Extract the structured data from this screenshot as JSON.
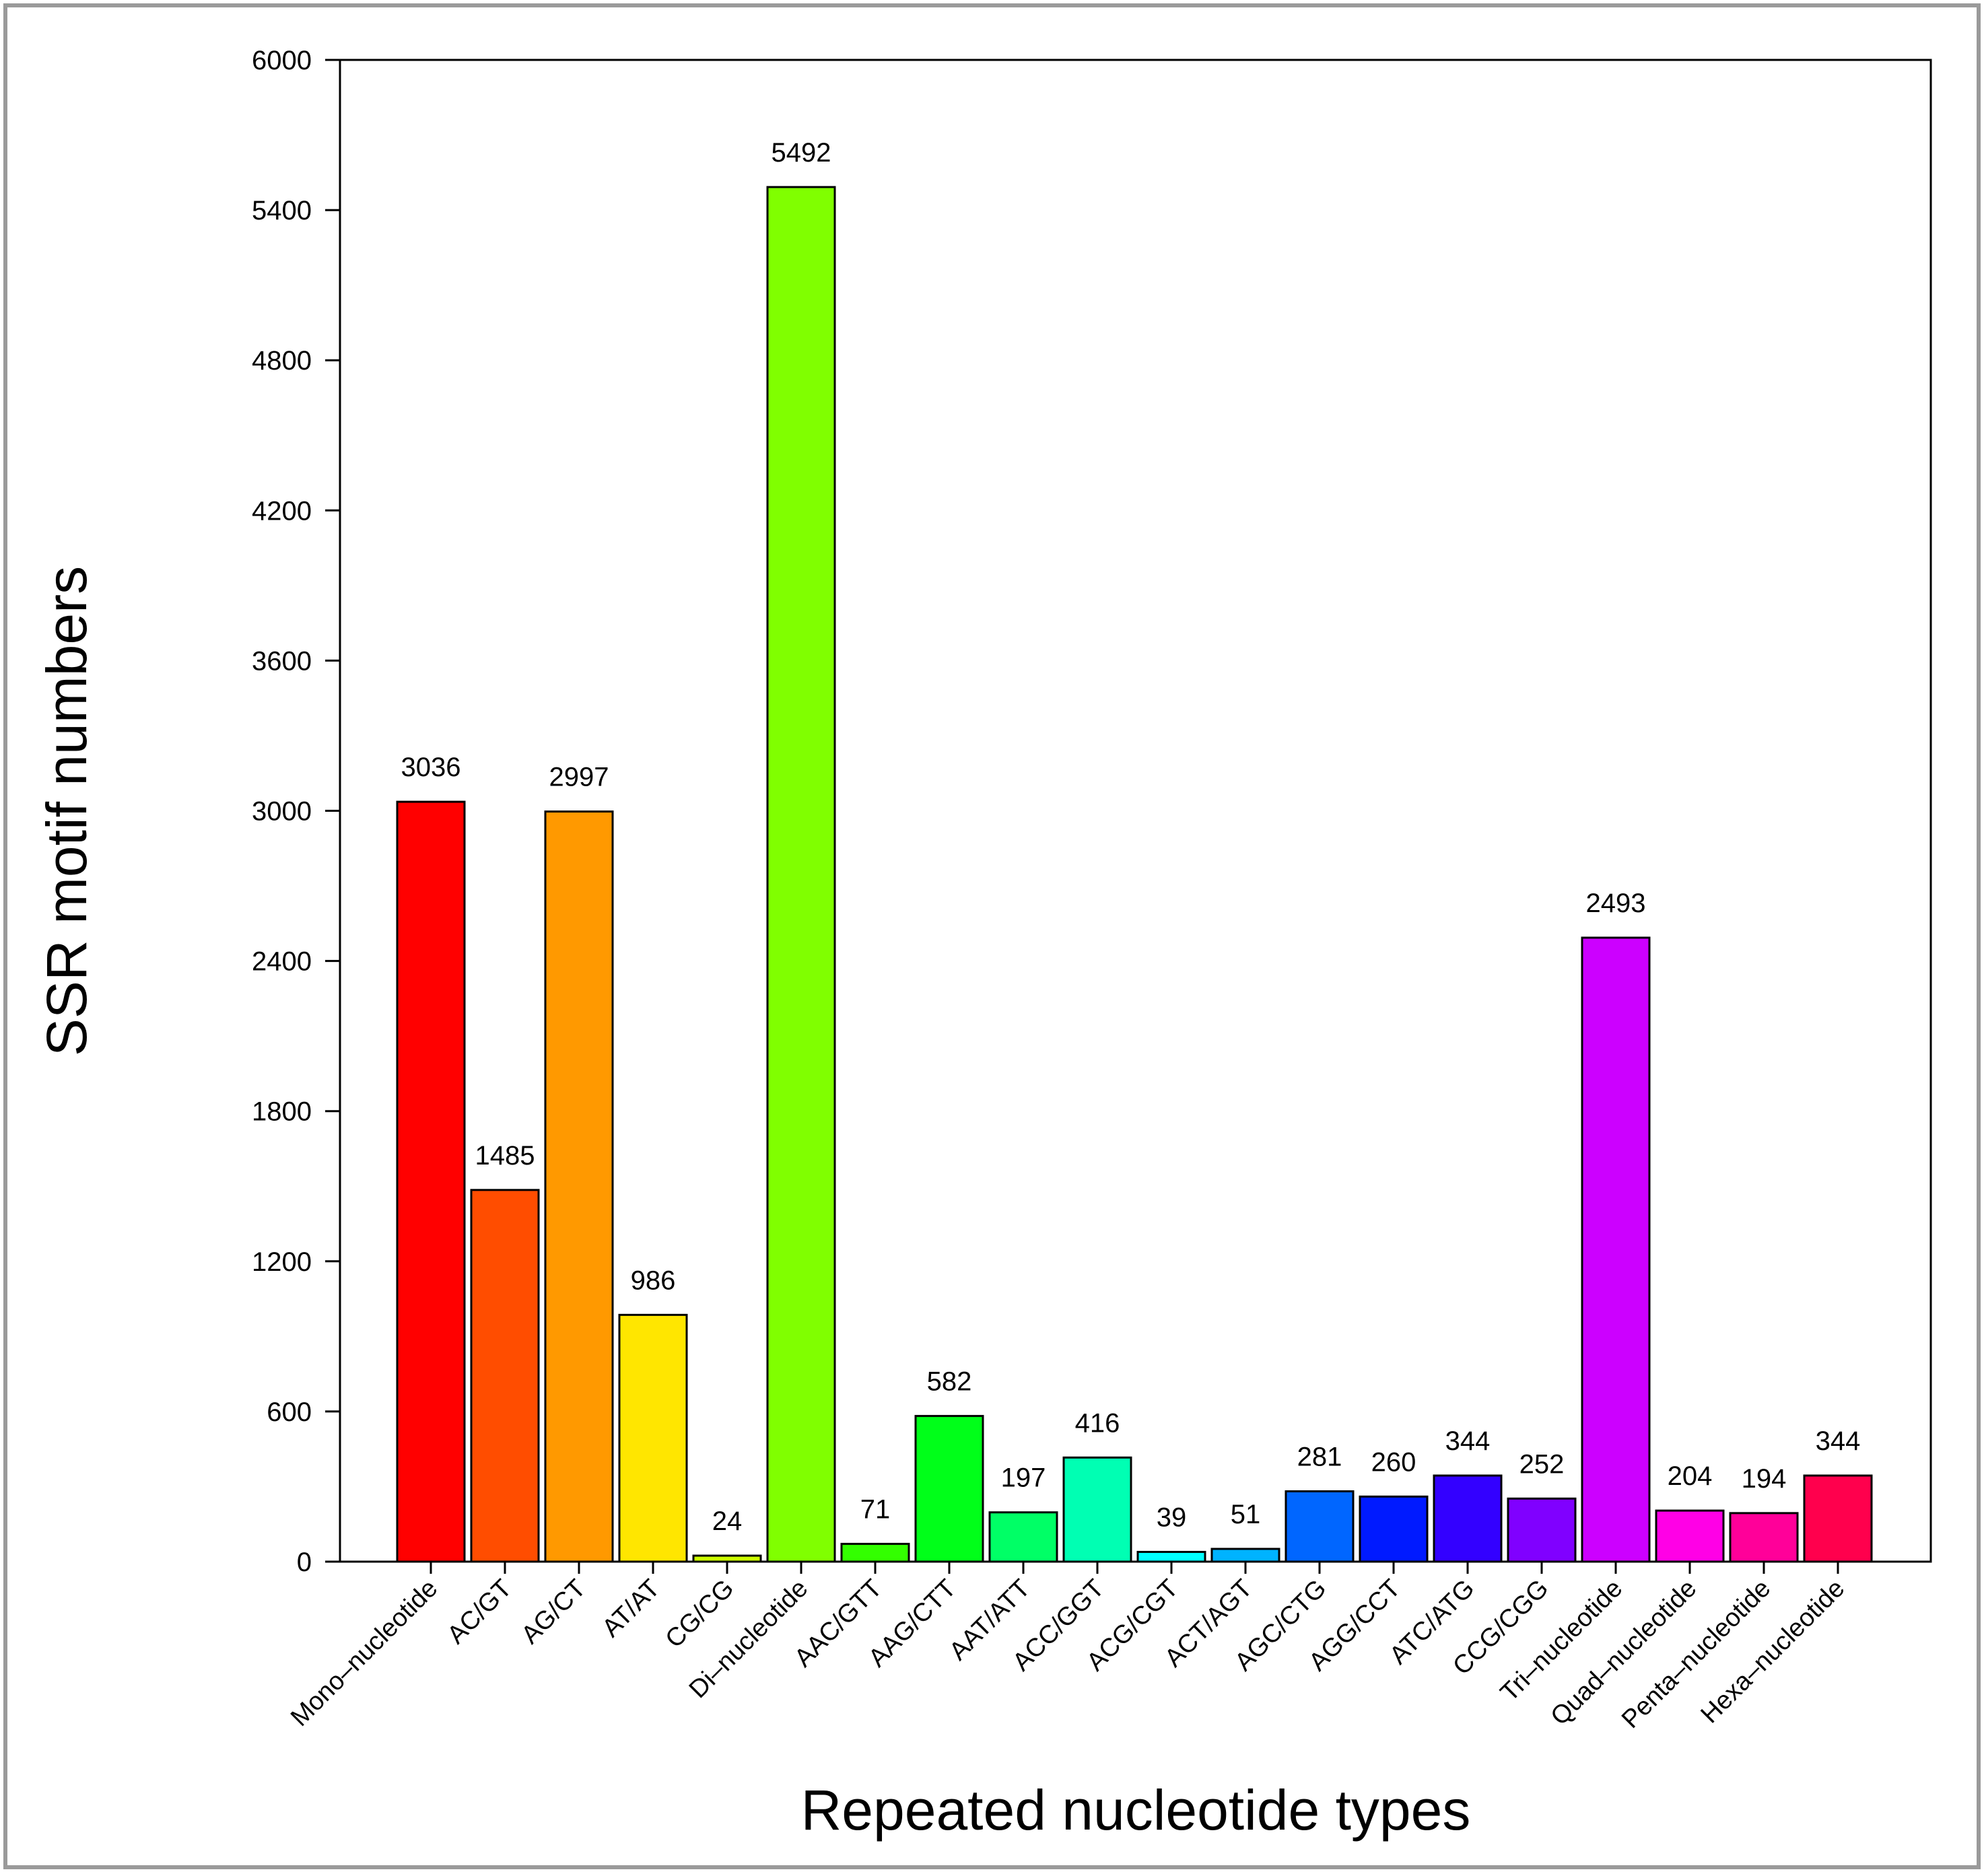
{
  "chart_data": {
    "type": "bar",
    "title": "",
    "xlabel": "Repeated nucleotide types",
    "ylabel": "SSR motif numbers",
    "ylim": [
      0,
      6000
    ],
    "yticks": [
      "0",
      "600",
      "1200",
      "1800",
      "2400",
      "3000",
      "3600",
      "4200",
      "4800",
      "5400",
      "6000"
    ],
    "ytick_values": [
      0,
      600,
      1200,
      1800,
      2400,
      3000,
      3600,
      4200,
      4800,
      5400,
      6000
    ],
    "grid": false,
    "legend": "none",
    "categories": [
      "Mono–nucleotide",
      "AC/GT",
      "AG/CT",
      "AT/AT",
      "CG/CG",
      "Di–nucleotide",
      "AAC/GTT",
      "AAG/CTT",
      "AAT/ATT",
      "ACC/GGT",
      "ACG/CGT",
      "ACT/AGT",
      "AGC/CTG",
      "AGG/CCT",
      "ATC/ATG",
      "CCG/CGG",
      "Tri–nucleotide",
      "Quad–nucleotide",
      "Penta–nucleotide",
      "Hexa–nucleotide"
    ],
    "values": [
      3036,
      1485,
      2997,
      986,
      24,
      5492,
      71,
      582,
      197,
      416,
      39,
      51,
      281,
      260,
      344,
      252,
      2493,
      204,
      194,
      344
    ],
    "data_labels": [
      "3036",
      "1485",
      "2997",
      "986",
      "24",
      "5492",
      "71",
      "582",
      "197",
      "416",
      "39",
      "51",
      "281",
      "260",
      "344",
      "252",
      "2493",
      "204",
      "194",
      "344"
    ],
    "colors": [
      "#ff0000",
      "#ff4d00",
      "#ff9900",
      "#ffe600",
      "#ccff00",
      "#80ff00",
      "#33ff00",
      "#00ff19",
      "#00ff66",
      "#00ffb3",
      "#00ffff",
      "#00b3ff",
      "#0066ff",
      "#001aff",
      "#3300ff",
      "#8000ff",
      "#cc00ff",
      "#ff00e6",
      "#ff0099",
      "#ff004d"
    ]
  }
}
